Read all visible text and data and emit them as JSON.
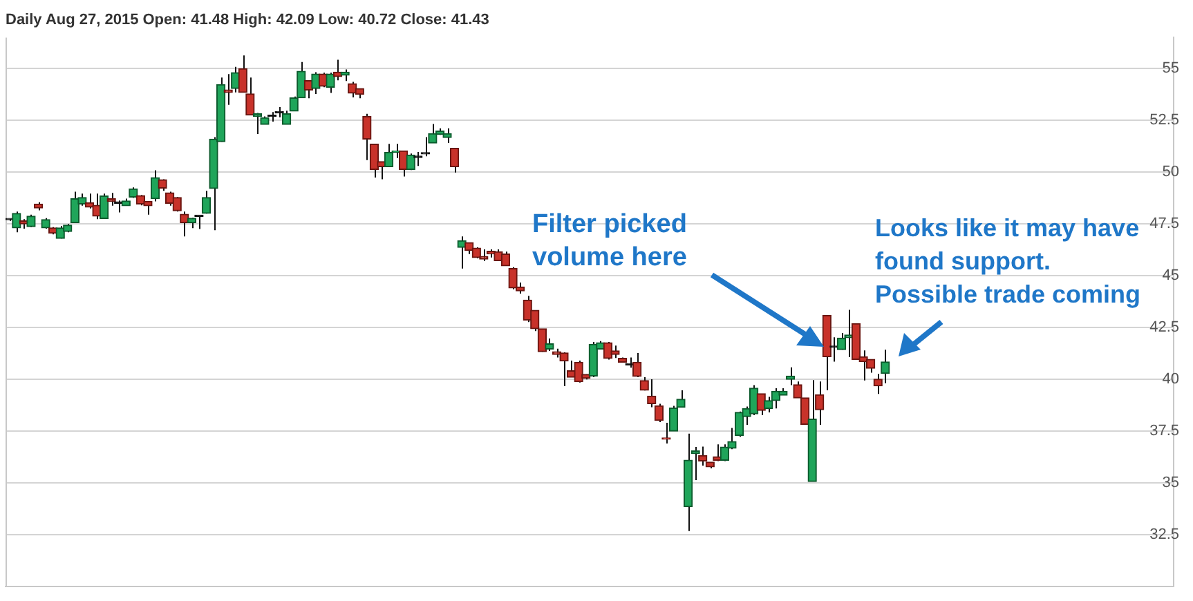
{
  "chart_data": {
    "type": "candlestick",
    "title": "Daily Aug 27, 2015 Open: 41.48 High: 42.09 Low: 40.72 Close: 41.43",
    "categories": [
      null,
      null,
      null,
      null,
      null,
      null,
      null,
      null,
      null,
      null,
      null,
      null,
      null,
      null,
      null,
      null,
      null,
      null,
      null,
      null,
      null,
      null,
      null,
      null,
      null,
      null,
      null,
      null,
      null,
      null,
      null,
      null,
      null,
      null,
      null,
      null,
      null,
      null,
      null,
      null,
      null,
      null,
      null,
      null,
      null,
      null,
      null,
      null,
      null,
      null,
      null,
      null,
      null,
      null,
      null,
      null,
      null,
      null,
      null,
      null,
      null,
      null,
      null,
      null,
      null,
      null,
      null,
      null,
      null,
      null,
      null,
      null,
      null,
      null,
      null,
      null,
      null,
      null,
      null,
      null,
      null,
      null,
      null,
      null,
      null,
      null,
      null,
      null,
      null,
      null,
      null,
      null,
      null,
      null,
      null,
      null,
      null,
      null,
      null,
      null,
      null,
      null,
      null,
      null,
      null,
      null,
      null,
      null,
      null,
      null,
      null,
      null,
      null,
      null,
      null,
      null,
      null,
      null,
      null,
      null,
      null,
      null,
      null,
      null,
      null,
      null,
      null,
      null,
      null,
      null,
      null,
      null,
      null,
      null,
      null,
      null,
      null,
      null,
      null,
      null,
      null,
      null,
      null,
      null,
      null,
      null,
      null,
      null,
      null,
      null,
      null,
      null,
      null,
      null,
      null,
      null,
      null,
      null,
      null,
      null
    ],
    "ohlc": [
      [
        47.7,
        47.75,
        47.65,
        47.7
      ],
      [
        47.31,
        48.1,
        47.1,
        48.01
      ],
      [
        47.65,
        47.73,
        47.27,
        47.5
      ],
      [
        47.37,
        47.95,
        47.35,
        47.88
      ],
      [
        48.46,
        48.55,
        48.16,
        48.27
      ],
      [
        47.31,
        47.78,
        47.27,
        47.71
      ],
      [
        47.31,
        47.35,
        47.0,
        47.05
      ],
      [
        46.8,
        47.4,
        46.8,
        47.31
      ],
      [
        47.14,
        47.5,
        47.1,
        47.44
      ],
      [
        47.56,
        49.06,
        47.56,
        48.72
      ],
      [
        48.46,
        48.97,
        48.38,
        48.78
      ],
      [
        48.53,
        48.97,
        48.25,
        48.31
      ],
      [
        48.4,
        48.97,
        47.73,
        47.88
      ],
      [
        47.76,
        48.97,
        47.74,
        48.85
      ],
      [
        48.72,
        49.0,
        48.38,
        48.59
      ],
      [
        48.5,
        48.63,
        48.06,
        48.5
      ],
      [
        48.38,
        48.72,
        48.38,
        48.61
      ],
      [
        48.8,
        49.27,
        48.76,
        49.19
      ],
      [
        48.87,
        48.9,
        48.4,
        48.46
      ],
      [
        48.59,
        48.6,
        47.95,
        48.38
      ],
      [
        48.72,
        50.09,
        48.59,
        49.74
      ],
      [
        49.64,
        49.66,
        49.1,
        49.23
      ],
      [
        49.0,
        49.06,
        48.38,
        48.5
      ],
      [
        48.78,
        48.8,
        48.1,
        48.14
      ],
      [
        47.97,
        48.1,
        46.9,
        47.56
      ],
      [
        47.56,
        47.8,
        47.3,
        47.78
      ],
      [
        47.86,
        47.86,
        47.26,
        47.86
      ],
      [
        48.01,
        49.1,
        48.0,
        48.78
      ],
      [
        49.21,
        51.69,
        47.2,
        51.6
      ],
      [
        51.47,
        54.57,
        51.47,
        54.23
      ],
      [
        53.97,
        54.74,
        53.25,
        53.85
      ],
      [
        54.04,
        55.09,
        53.85,
        54.81
      ],
      [
        55.0,
        55.64,
        53.85,
        53.85
      ],
      [
        53.78,
        54.57,
        52.76,
        52.76
      ],
      [
        52.69,
        52.86,
        51.84,
        52.82
      ],
      [
        52.31,
        52.69,
        52.31,
        52.63
      ],
      [
        52.69,
        52.9,
        52.44,
        52.69
      ],
      [
        52.86,
        53.14,
        52.65,
        52.86
      ],
      [
        52.31,
        52.97,
        52.31,
        52.82
      ],
      [
        52.95,
        53.65,
        52.95,
        53.59
      ],
      [
        53.59,
        55.32,
        53.59,
        54.87
      ],
      [
        54.42,
        54.42,
        53.57,
        53.97
      ],
      [
        54.04,
        54.83,
        53.78,
        54.74
      ],
      [
        54.74,
        54.8,
        54.1,
        54.15
      ],
      [
        54.1,
        54.8,
        53.83,
        54.74
      ],
      [
        54.83,
        55.43,
        54.44,
        54.62
      ],
      [
        54.68,
        54.96,
        54.4,
        54.83
      ],
      [
        54.27,
        54.36,
        53.61,
        53.82
      ],
      [
        54.04,
        54.04,
        53.57,
        53.76
      ],
      [
        52.69,
        52.82,
        50.58,
        51.6
      ],
      [
        51.35,
        51.35,
        49.74,
        50.13
      ],
      [
        50.51,
        50.51,
        49.66,
        50.26
      ],
      [
        50.26,
        51.37,
        50.26,
        50.96
      ],
      [
        50.96,
        51.37,
        50.68,
        51.03
      ],
      [
        51.03,
        51.03,
        49.79,
        50.13
      ],
      [
        50.13,
        50.9,
        50.1,
        50.83
      ],
      [
        50.71,
        50.98,
        50.3,
        50.71
      ],
      [
        50.88,
        51.69,
        50.77,
        50.88
      ],
      [
        51.41,
        52.33,
        51.41,
        51.86
      ],
      [
        51.82,
        52.12,
        51.8,
        51.99
      ],
      [
        51.67,
        52.12,
        51.41,
        51.86
      ],
      [
        51.15,
        51.15,
        49.98,
        50.26
      ],
      [
        46.37,
        46.9,
        45.35,
        46.69
      ],
      [
        46.6,
        46.6,
        46.05,
        46.22
      ],
      [
        46.33,
        46.37,
        45.84,
        45.88
      ],
      [
        45.93,
        46.27,
        45.71,
        45.8
      ],
      [
        46.18,
        46.27,
        45.88,
        46.05
      ],
      [
        46.16,
        46.27,
        45.73,
        45.73
      ],
      [
        46.05,
        46.16,
        45.48,
        45.48
      ],
      [
        45.35,
        45.41,
        44.35,
        44.41
      ],
      [
        44.46,
        44.67,
        44.14,
        44.27
      ],
      [
        43.82,
        44.03,
        42.76,
        42.86
      ],
      [
        43.33,
        43.33,
        42.33,
        42.44
      ],
      [
        42.44,
        42.44,
        41.33,
        41.33
      ],
      [
        41.46,
        41.97,
        41.37,
        41.71
      ],
      [
        41.33,
        41.48,
        41.05,
        41.2
      ],
      [
        41.27,
        41.3,
        39.67,
        40.88
      ],
      [
        40.41,
        40.9,
        40.1,
        40.1
      ],
      [
        40.82,
        40.9,
        39.84,
        39.88
      ],
      [
        40.24,
        40.24,
        39.99,
        40.05
      ],
      [
        40.16,
        41.8,
        40.1,
        41.69
      ],
      [
        41.46,
        41.84,
        41.46,
        41.76
      ],
      [
        41.76,
        41.8,
        40.95,
        41.01
      ],
      [
        41.37,
        41.63,
        41.03,
        41.2
      ],
      [
        41.01,
        41.05,
        40.82,
        40.82
      ],
      [
        40.69,
        41.05,
        40.56,
        40.69
      ],
      [
        40.82,
        41.27,
        40.1,
        40.14
      ],
      [
        39.94,
        40.1,
        39.46,
        39.47
      ],
      [
        39.19,
        40.0,
        38.65,
        38.82
      ],
      [
        38.72,
        38.82,
        37.93,
        38.01
      ],
      [
        37.16,
        37.9,
        36.9,
        37.1
      ],
      [
        37.5,
        38.72,
        37.5,
        38.61
      ],
      [
        38.65,
        39.47,
        38.65,
        39.04
      ],
      [
        33.85,
        37.37,
        32.67,
        36.09
      ],
      [
        36.41,
        36.73,
        35.13,
        36.54
      ],
      [
        36.32,
        36.75,
        35.83,
        36.05
      ],
      [
        36.0,
        36.0,
        35.7,
        35.77
      ],
      [
        36.26,
        36.86,
        36.05,
        36.09
      ],
      [
        36.09,
        36.86,
        36.05,
        36.73
      ],
      [
        36.67,
        37.65,
        36.62,
        36.99
      ],
      [
        37.29,
        38.44,
        37.22,
        38.4
      ],
      [
        38.2,
        38.68,
        37.8,
        38.59
      ],
      [
        38.33,
        39.72,
        38.27,
        39.57
      ],
      [
        39.3,
        39.3,
        38.27,
        38.5
      ],
      [
        38.59,
        39.15,
        38.4,
        38.97
      ],
      [
        38.97,
        39.57,
        38.59,
        39.42
      ],
      [
        39.23,
        39.57,
        39.23,
        39.42
      ],
      [
        40.0,
        40.58,
        39.72,
        40.15
      ],
      [
        39.74,
        39.89,
        39.1,
        39.1
      ],
      [
        39.1,
        39.1,
        37.82,
        37.82
      ],
      [
        35.06,
        39.96,
        35.06,
        38.08
      ],
      [
        39.25,
        39.89,
        37.8,
        38.53
      ],
      [
        43.08,
        43.08,
        39.47,
        41.09
      ],
      [
        41.54,
        42.03,
        40.85,
        41.54
      ],
      [
        41.43,
        42.24,
        41.43,
        41.99
      ],
      [
        42.01,
        43.35,
        41.07,
        42.14
      ],
      [
        42.69,
        42.69,
        40.96,
        40.96
      ],
      [
        41.09,
        41.39,
        39.94,
        40.85
      ],
      [
        40.96,
        40.96,
        40.32,
        40.53
      ],
      [
        40.0,
        40.26,
        39.29,
        39.68
      ],
      [
        40.28,
        41.43,
        39.81,
        40.84
      ],
      null,
      null,
      null,
      null,
      null,
      null,
      null,
      null,
      null,
      null,
      null,
      null,
      null,
      null,
      null,
      null,
      null,
      null,
      null,
      null,
      null,
      null,
      null,
      null,
      null,
      null,
      null,
      null,
      null,
      null,
      null,
      null,
      null,
      null,
      null,
      null,
      null,
      null,
      null
    ],
    "ylim": [
      30,
      56.5
    ],
    "yticks": [
      32.5,
      35,
      37.5,
      40,
      42.5,
      45,
      47.5,
      50,
      52.5,
      55
    ],
    "grid": "y",
    "legend": false,
    "tick_labels": "y",
    "annotations": [
      "Filter picked volume here",
      "Looks like it may have found support. Possible trade coming"
    ]
  }
}
